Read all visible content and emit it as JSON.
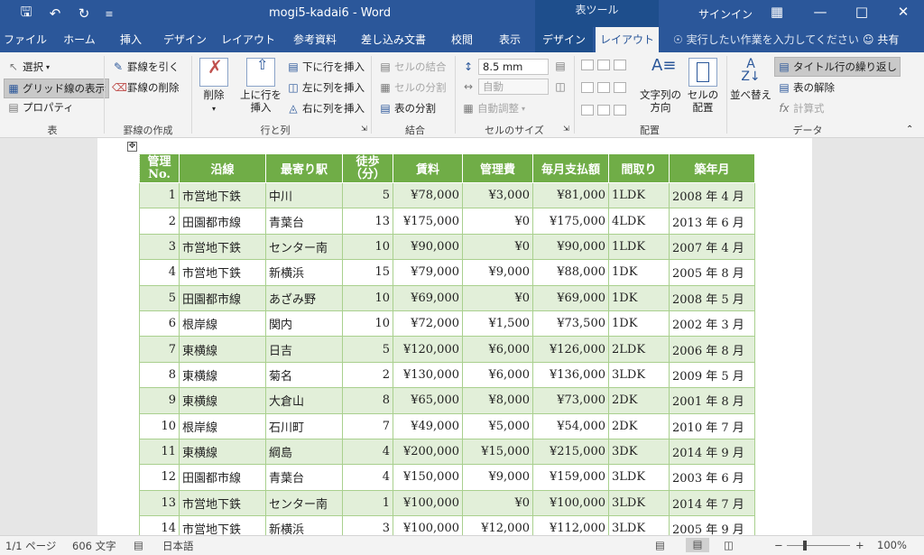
{
  "titlebar": {
    "doc_title": "mogi5-kadai6  -  Word",
    "context_label": "表ツール",
    "signin": "サインイン"
  },
  "tabs": [
    {
      "label": "ファイル"
    },
    {
      "label": "ホーム"
    },
    {
      "label": "挿入"
    },
    {
      "label": "デザイン"
    },
    {
      "label": "レイアウト"
    },
    {
      "label": "参考資料"
    },
    {
      "label": "差し込み文書"
    },
    {
      "label": "校閲"
    },
    {
      "label": "表示"
    },
    {
      "label": "デザイン"
    },
    {
      "label": "レイアウト"
    }
  ],
  "tell_me": "実行したい作業を入力してください",
  "share": "共有",
  "ribbon": {
    "table_group": {
      "label": "表",
      "select": "選択",
      "gridlines": "グリッド線の表示",
      "properties": "プロパティ"
    },
    "draw_group": {
      "label": "罫線の作成",
      "draw": "罫線を引く",
      "erase": "罫線の削除"
    },
    "rowcol_group": {
      "label": "行と列",
      "delete": "削除",
      "insert_above_1": "上に行を",
      "insert_above_2": "挿入",
      "insert_below": "下に行を挿入",
      "insert_left": "左に列を挿入",
      "insert_right": "右に列を挿入"
    },
    "merge_group": {
      "label": "結合",
      "merge": "セルの結合",
      "split": "セルの分割",
      "split_table": "表の分割"
    },
    "size_group": {
      "label": "セルのサイズ",
      "height": "8.5 mm",
      "width": "自動",
      "autofit": "自動調整"
    },
    "align_group": {
      "label": "配置",
      "direction_1": "文字列の",
      "direction_2": "方向",
      "margins_1": "セルの",
      "margins_2": "配置"
    },
    "data_group": {
      "label": "データ",
      "sort": "並べ替え",
      "repeat_header": "タイトル行の繰り返し",
      "convert": "表の解除",
      "formula": "計算式"
    }
  },
  "table": {
    "headers": [
      "管理No.",
      "沿線",
      "最寄り駅",
      "徒歩(分)",
      "賃料",
      "管理費",
      "毎月支払額",
      "間取り",
      "築年月"
    ],
    "header_no_1": "管理",
    "header_no_2": "No.",
    "header_walk_1": "徒歩",
    "header_walk_2": "（分）",
    "rows": [
      [
        "1",
        "市営地下鉄",
        "中川",
        "5",
        "¥78,000",
        "¥3,000",
        "¥81,000",
        "1LDK",
        "2008 年 4 月"
      ],
      [
        "2",
        "田園都市線",
        "青葉台",
        "13",
        "¥175,000",
        "¥0",
        "¥175,000",
        "4LDK",
        "2013 年 6 月"
      ],
      [
        "3",
        "市営地下鉄",
        "センター南",
        "10",
        "¥90,000",
        "¥0",
        "¥90,000",
        "1LDK",
        "2007 年 4 月"
      ],
      [
        "4",
        "市営地下鉄",
        "新横浜",
        "15",
        "¥79,000",
        "¥9,000",
        "¥88,000",
        "1DK",
        "2005 年 8 月"
      ],
      [
        "5",
        "田園都市線",
        "あざみ野",
        "10",
        "¥69,000",
        "¥0",
        "¥69,000",
        "1DK",
        "2008 年 5 月"
      ],
      [
        "6",
        "根岸線",
        "関内",
        "10",
        "¥72,000",
        "¥1,500",
        "¥73,500",
        "1DK",
        "2002 年 3 月"
      ],
      [
        "7",
        "東横線",
        "日吉",
        "5",
        "¥120,000",
        "¥6,000",
        "¥126,000",
        "2LDK",
        "2006 年 8 月"
      ],
      [
        "8",
        "東横線",
        "菊名",
        "2",
        "¥130,000",
        "¥6,000",
        "¥136,000",
        "3LDK",
        "2009 年 5 月"
      ],
      [
        "9",
        "東横線",
        "大倉山",
        "8",
        "¥65,000",
        "¥8,000",
        "¥73,000",
        "2DK",
        "2001 年 8 月"
      ],
      [
        "10",
        "根岸線",
        "石川町",
        "7",
        "¥49,000",
        "¥5,000",
        "¥54,000",
        "2DK",
        "2010 年 7 月"
      ],
      [
        "11",
        "東横線",
        "綱島",
        "4",
        "¥200,000",
        "¥15,000",
        "¥215,000",
        "3DK",
        "2014 年 9 月"
      ],
      [
        "12",
        "田園都市線",
        "青葉台",
        "4",
        "¥150,000",
        "¥9,000",
        "¥159,000",
        "3LDK",
        "2003 年 6 月"
      ],
      [
        "13",
        "市営地下鉄",
        "センター南",
        "1",
        "¥100,000",
        "¥0",
        "¥100,000",
        "3LDK",
        "2014 年 7 月"
      ],
      [
        "14",
        "市営地下鉄",
        "新横浜",
        "3",
        "¥100,000",
        "¥12,000",
        "¥112,000",
        "3LDK",
        "2005 年 9 月"
      ]
    ]
  },
  "statusbar": {
    "page": "1/1 ページ",
    "words": "606 文字",
    "lang": "日本語",
    "zoom": "100%"
  },
  "colors": {
    "brand": "#2b579a",
    "header_fill": "#70ad47",
    "band_fill": "#e2efd9"
  }
}
